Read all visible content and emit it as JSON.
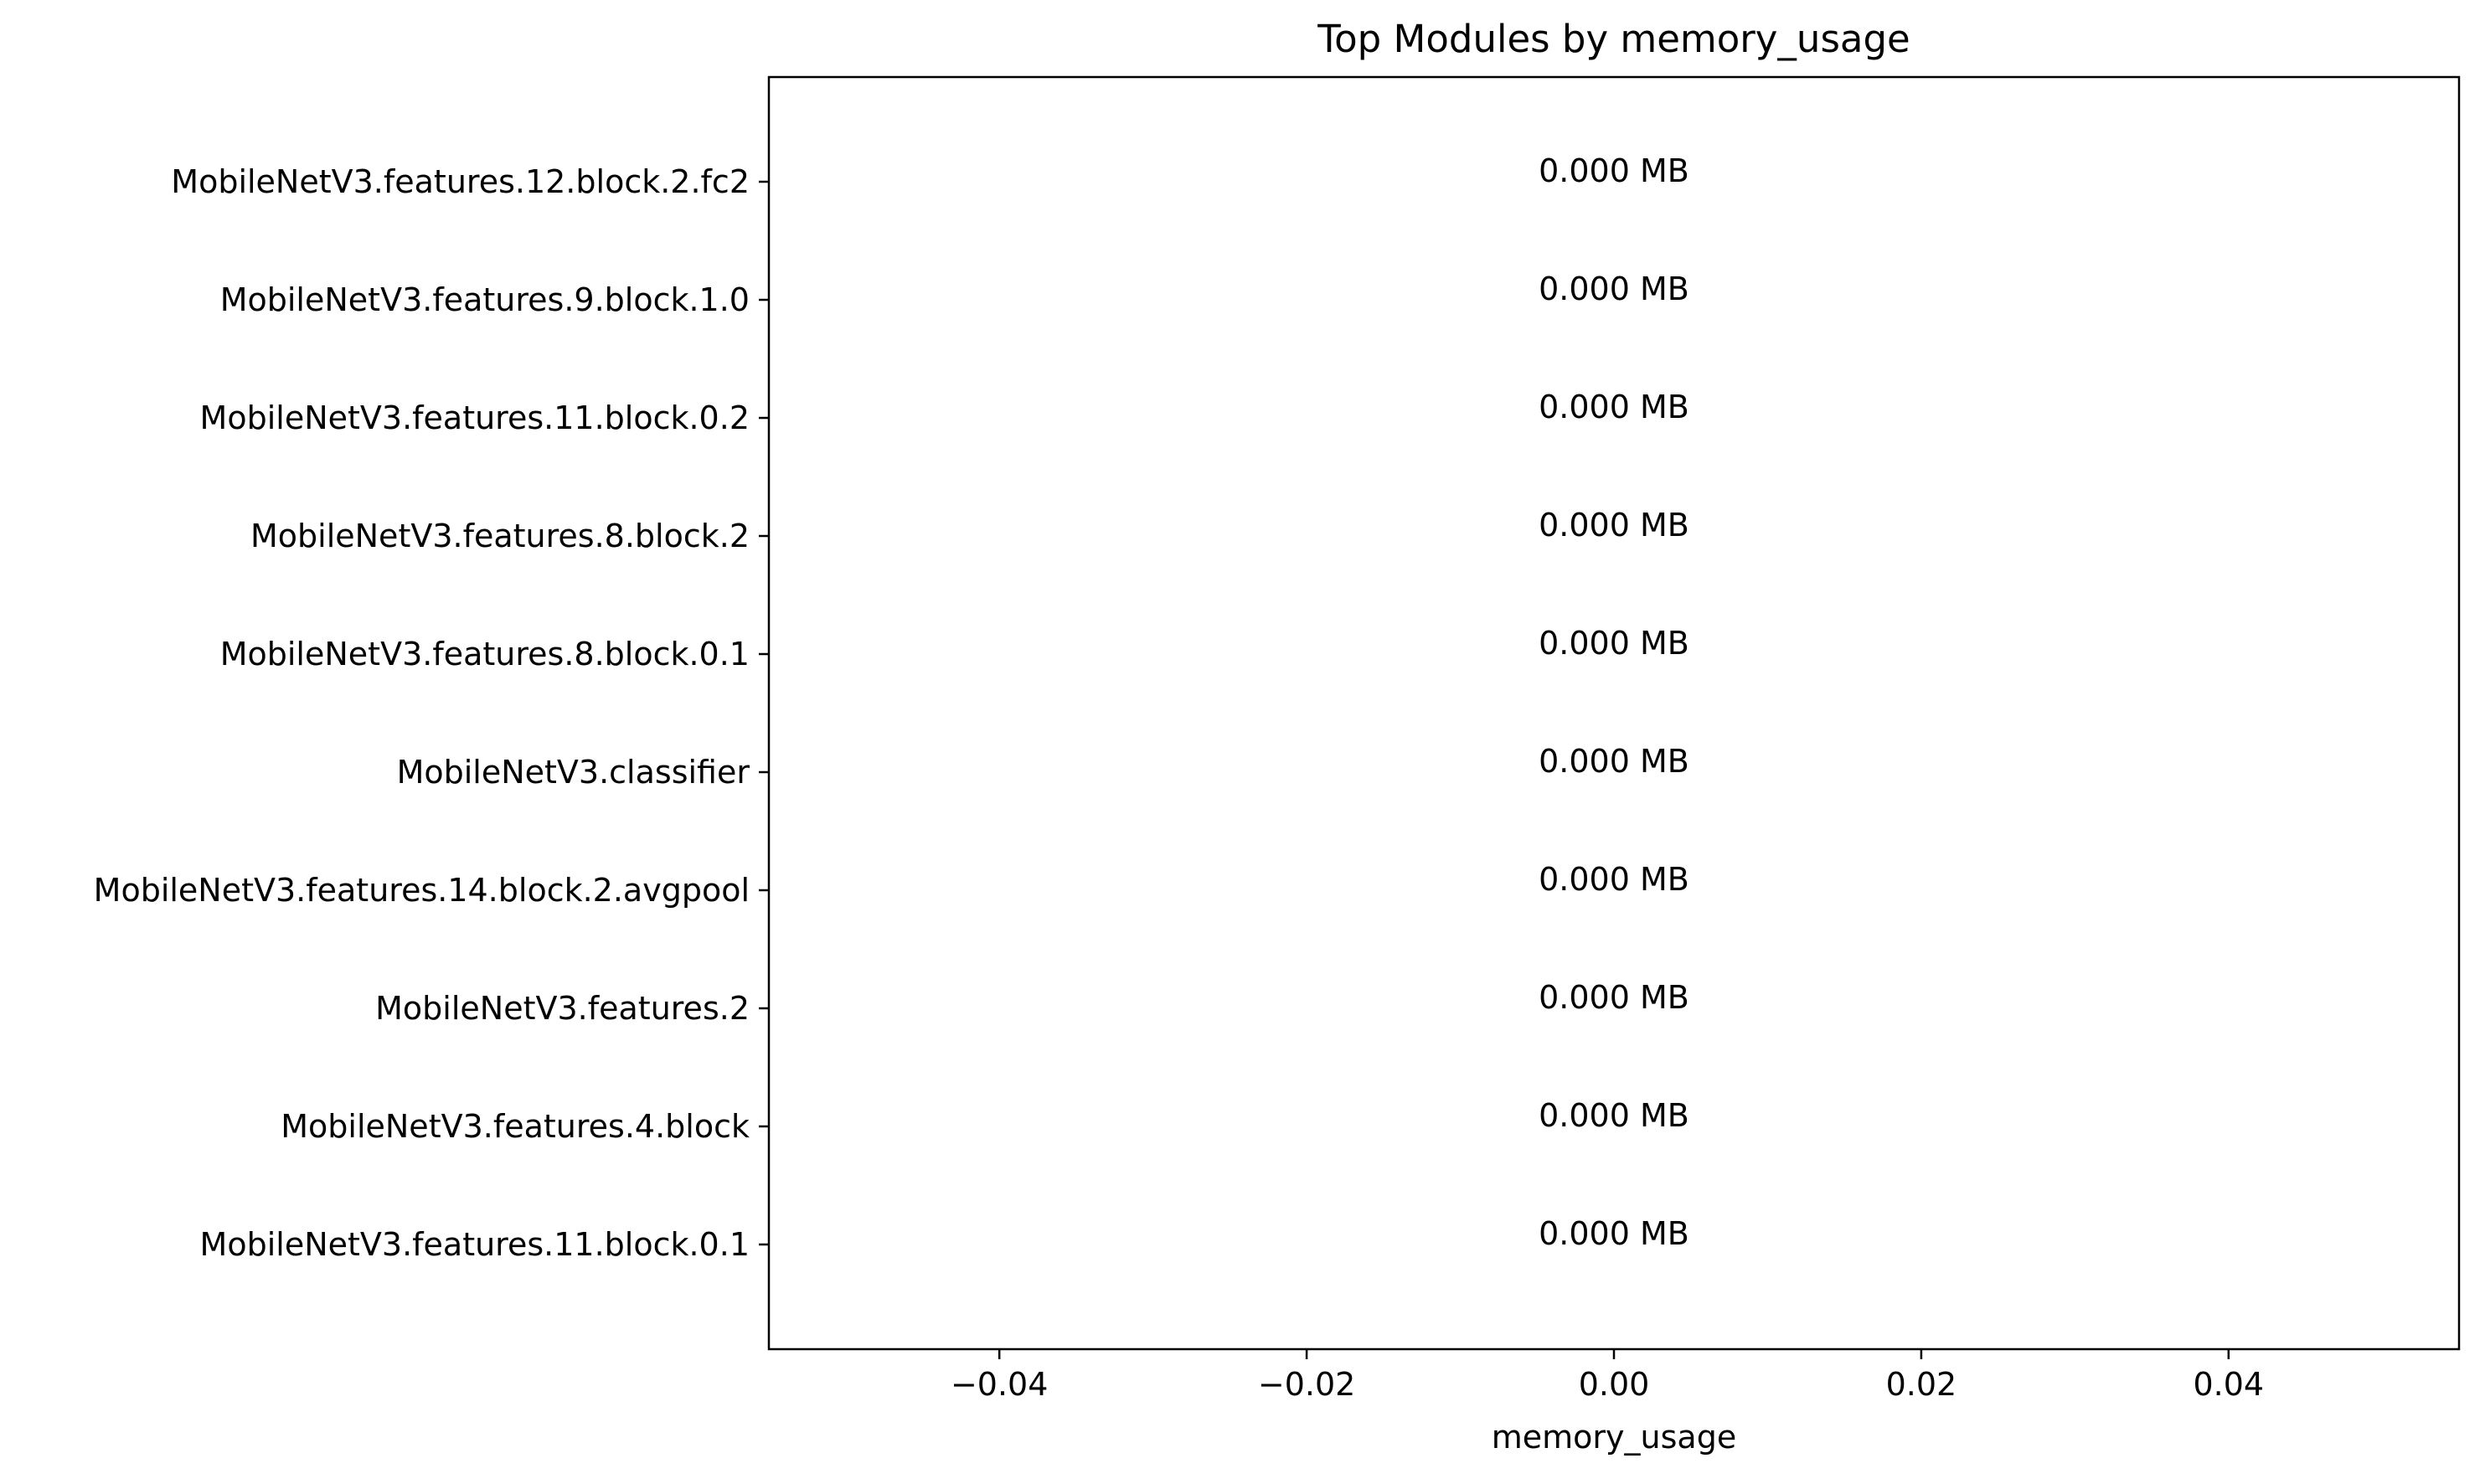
{
  "chart_data": {
    "type": "bar",
    "orientation": "horizontal",
    "title": "Top Modules by memory_usage",
    "xlabel": "memory_usage",
    "ylabel": "",
    "xlim": [
      -0.055,
      0.055
    ],
    "xticks": [
      -0.04,
      -0.02,
      0.0,
      0.02,
      0.04
    ],
    "xtick_labels": [
      "−0.04",
      "−0.02",
      "0.00",
      "0.02",
      "0.04"
    ],
    "categories": [
      "MobileNetV3.features.12.block.2.fc2",
      "MobileNetV3.features.9.block.1.0",
      "MobileNetV3.features.11.block.0.2",
      "MobileNetV3.features.8.block.2",
      "MobileNetV3.features.8.block.0.1",
      "MobileNetV3.classifier",
      "MobileNetV3.features.14.block.2.avgpool",
      "MobileNetV3.features.2",
      "MobileNetV3.features.4.block",
      "MobileNetV3.features.11.block.0.1"
    ],
    "values": [
      0,
      0,
      0,
      0,
      0,
      0,
      0,
      0,
      0,
      0
    ],
    "data_labels": [
      "0.000 MB",
      "0.000 MB",
      "0.000 MB",
      "0.000 MB",
      "0.000 MB",
      "0.000 MB",
      "0.000 MB",
      "0.000 MB",
      "0.000 MB",
      "0.000 MB"
    ],
    "grid": false,
    "legend": "none"
  }
}
